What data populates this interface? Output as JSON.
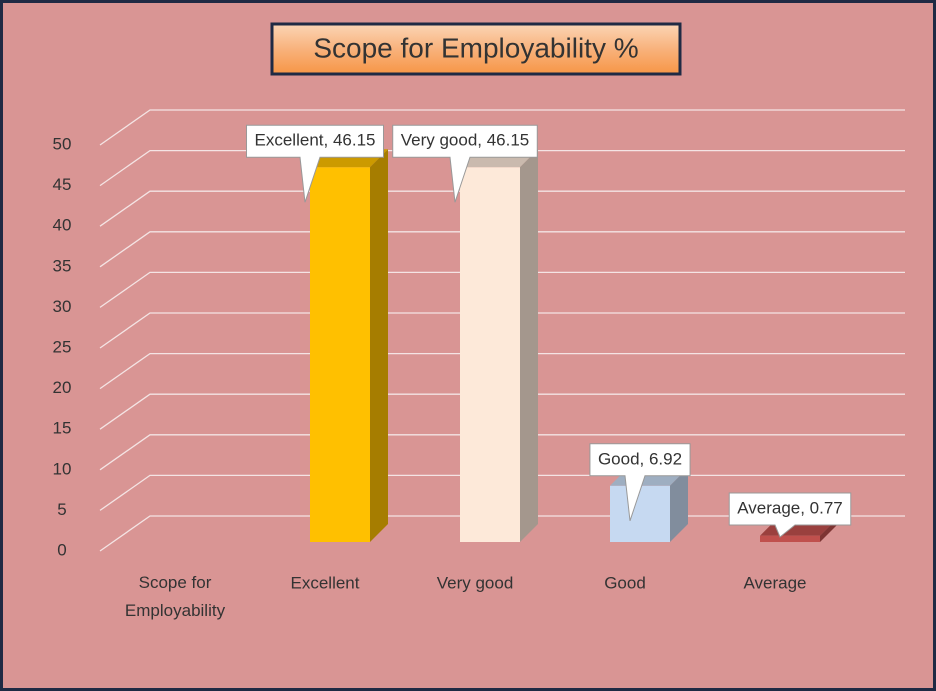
{
  "chart_data": {
    "type": "bar3d",
    "title": "Scope for Employability %",
    "categories": [
      "Scope for Employability",
      "Excellent",
      "Very good",
      "Good",
      "Average"
    ],
    "values": [
      null,
      46.15,
      46.15,
      6.92,
      0.77
    ],
    "value_labels": [
      null,
      "Excellent, 46.15",
      "Very good, 46.15",
      "Good, 6.92",
      "Average, 0.77"
    ],
    "colors": [
      null,
      "#ffc000",
      "#fde9d9",
      "#c6d9f1",
      "#c0504d"
    ],
    "ylim": [
      0,
      50
    ],
    "yticks": [
      0,
      5,
      10,
      15,
      20,
      25,
      30,
      35,
      40,
      45,
      50
    ],
    "grid": true
  }
}
